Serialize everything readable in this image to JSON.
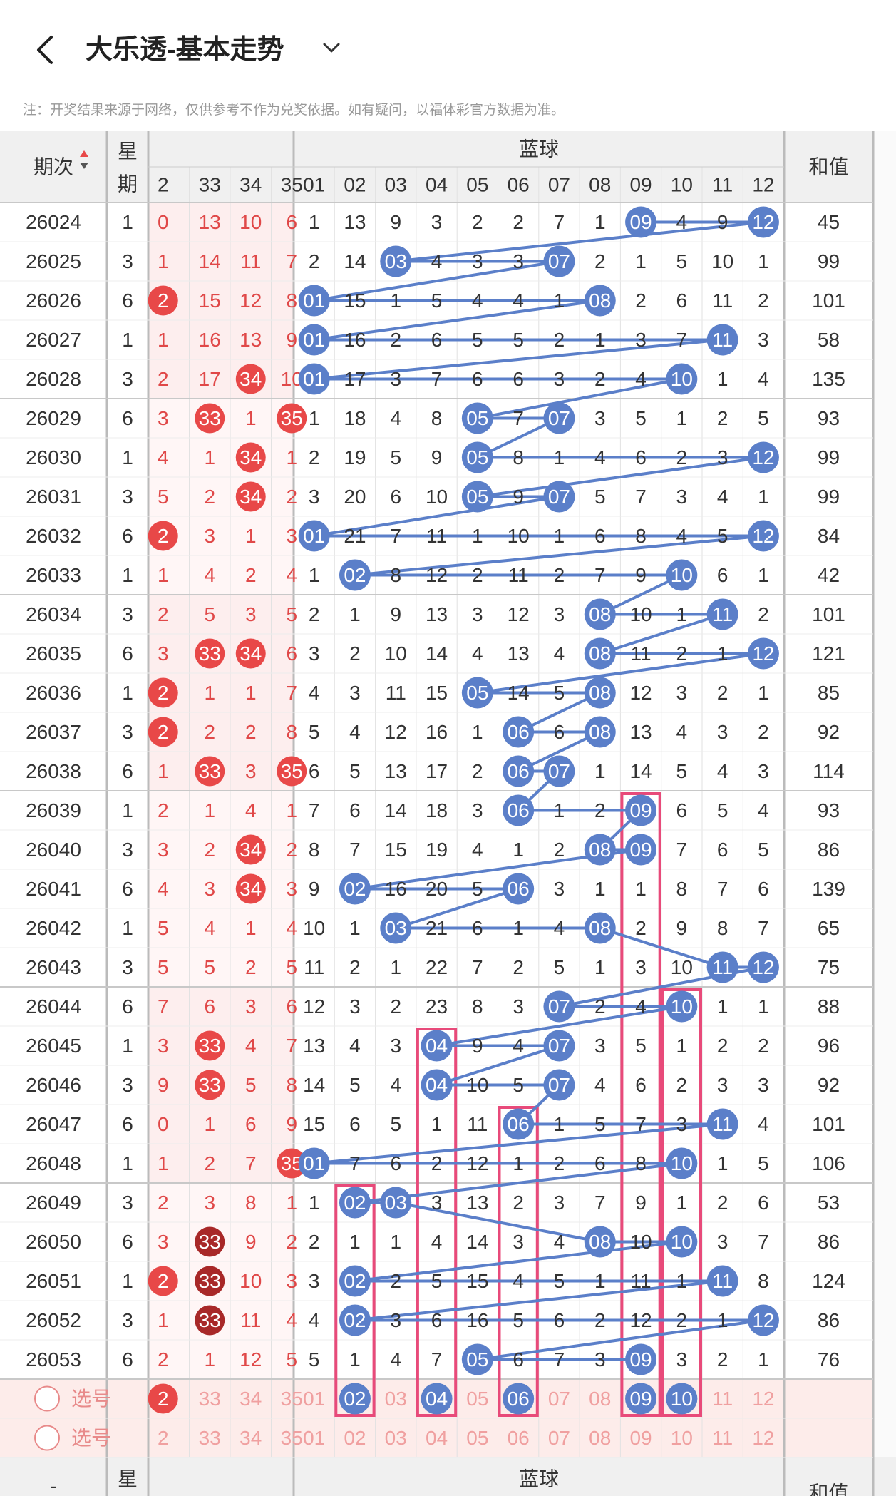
{
  "header": {
    "title": "大乐透-基本走势",
    "back_icon": "chevron-left-icon",
    "dropdown_icon": "chevron-down-icon"
  },
  "note": "注：开奖结果来源于网络，仅供参考不作为兑奖依据。如有疑问，以福体彩官方数据为准。",
  "table": {
    "issue_label": "期次",
    "week_label_1": "星",
    "week_label_2": "期",
    "blue_label": "蓝球",
    "sum_label": "和值",
    "front_cols": [
      "2",
      "33",
      "34",
      "35"
    ],
    "blue_cols": [
      "01",
      "02",
      "03",
      "04",
      "05",
      "06",
      "07",
      "08",
      "09",
      "10",
      "11",
      "12"
    ],
    "rows": [
      {
        "issue": "26024",
        "week": "1",
        "front": [
          "0",
          "13",
          "10",
          "6"
        ],
        "front_hit": [
          0,
          0,
          0,
          0
        ],
        "blue": [
          "1",
          "13",
          "9",
          "3",
          "2",
          "2",
          "7",
          "1",
          "09",
          "4",
          "9",
          "12"
        ],
        "blue_hit": [
          9,
          12
        ],
        "sum": "45"
      },
      {
        "issue": "26025",
        "week": "3",
        "front": [
          "1",
          "14",
          "11",
          "7"
        ],
        "front_hit": [
          0,
          0,
          0,
          0
        ],
        "blue": [
          "2",
          "14",
          "03",
          "4",
          "3",
          "3",
          "07",
          "2",
          "1",
          "5",
          "10",
          "1"
        ],
        "blue_hit": [
          3,
          7
        ],
        "sum": "99"
      },
      {
        "issue": "26026",
        "week": "6",
        "front": [
          "2",
          "15",
          "12",
          "8"
        ],
        "front_hit": [
          1,
          0,
          0,
          0
        ],
        "blue": [
          "01",
          "15",
          "1",
          "5",
          "4",
          "4",
          "1",
          "08",
          "2",
          "6",
          "11",
          "2"
        ],
        "blue_hit": [
          1,
          8
        ],
        "sum": "101"
      },
      {
        "issue": "26027",
        "week": "1",
        "front": [
          "1",
          "16",
          "13",
          "9"
        ],
        "front_hit": [
          0,
          0,
          0,
          0
        ],
        "blue": [
          "01",
          "16",
          "2",
          "6",
          "5",
          "5",
          "2",
          "1",
          "3",
          "7",
          "11",
          "3"
        ],
        "blue_hit": [
          1,
          11
        ],
        "sum": "58"
      },
      {
        "issue": "26028",
        "week": "3",
        "front": [
          "2",
          "17",
          "34",
          "10"
        ],
        "front_hit": [
          0,
          0,
          1,
          0
        ],
        "blue": [
          "01",
          "17",
          "3",
          "7",
          "6",
          "6",
          "3",
          "2",
          "4",
          "10",
          "1",
          "4"
        ],
        "blue_hit": [
          1,
          10
        ],
        "sum": "135"
      },
      {
        "issue": "26029",
        "week": "6",
        "front": [
          "3",
          "33",
          "1",
          "35"
        ],
        "front_hit": [
          0,
          1,
          0,
          1
        ],
        "blue": [
          "1",
          "18",
          "4",
          "8",
          "05",
          "7",
          "07",
          "3",
          "5",
          "1",
          "2",
          "5"
        ],
        "blue_hit": [
          5,
          7
        ],
        "sum": "93"
      },
      {
        "issue": "26030",
        "week": "1",
        "front": [
          "4",
          "1",
          "34",
          "1"
        ],
        "front_hit": [
          0,
          0,
          1,
          0
        ],
        "blue": [
          "2",
          "19",
          "5",
          "9",
          "05",
          "8",
          "1",
          "4",
          "6",
          "2",
          "3",
          "12"
        ],
        "blue_hit": [
          5,
          12
        ],
        "sum": "99"
      },
      {
        "issue": "26031",
        "week": "3",
        "front": [
          "5",
          "2",
          "34",
          "2"
        ],
        "front_hit": [
          0,
          0,
          1,
          0
        ],
        "blue": [
          "3",
          "20",
          "6",
          "10",
          "05",
          "9",
          "07",
          "5",
          "7",
          "3",
          "4",
          "1"
        ],
        "blue_hit": [
          5,
          7
        ],
        "sum": "99"
      },
      {
        "issue": "26032",
        "week": "6",
        "front": [
          "2",
          "3",
          "1",
          "3"
        ],
        "front_hit": [
          1,
          0,
          0,
          0
        ],
        "blue": [
          "01",
          "21",
          "7",
          "11",
          "1",
          "10",
          "1",
          "6",
          "8",
          "4",
          "5",
          "12"
        ],
        "blue_hit": [
          1,
          12
        ],
        "sum": "84"
      },
      {
        "issue": "26033",
        "week": "1",
        "front": [
          "1",
          "4",
          "2",
          "4"
        ],
        "front_hit": [
          0,
          0,
          0,
          0
        ],
        "blue": [
          "1",
          "02",
          "8",
          "12",
          "2",
          "11",
          "2",
          "7",
          "9",
          "10",
          "6",
          "1"
        ],
        "blue_hit": [
          2,
          10
        ],
        "sum": "42"
      },
      {
        "issue": "26034",
        "week": "3",
        "front": [
          "2",
          "5",
          "3",
          "5"
        ],
        "front_hit": [
          0,
          0,
          0,
          0
        ],
        "blue": [
          "2",
          "1",
          "9",
          "13",
          "3",
          "12",
          "3",
          "08",
          "10",
          "1",
          "11",
          "2"
        ],
        "blue_hit": [
          8,
          11
        ],
        "sum": "101"
      },
      {
        "issue": "26035",
        "week": "6",
        "front": [
          "3",
          "33",
          "34",
          "6"
        ],
        "front_hit": [
          0,
          1,
          1,
          0
        ],
        "blue": [
          "3",
          "2",
          "10",
          "14",
          "4",
          "13",
          "4",
          "08",
          "11",
          "2",
          "1",
          "12"
        ],
        "blue_hit": [
          8,
          12
        ],
        "sum": "121"
      },
      {
        "issue": "26036",
        "week": "1",
        "front": [
          "2",
          "1",
          "1",
          "7"
        ],
        "front_hit": [
          1,
          0,
          0,
          0
        ],
        "blue": [
          "4",
          "3",
          "11",
          "15",
          "05",
          "14",
          "5",
          "08",
          "12",
          "3",
          "2",
          "1"
        ],
        "blue_hit": [
          5,
          8
        ],
        "sum": "85"
      },
      {
        "issue": "26037",
        "week": "3",
        "front": [
          "2",
          "2",
          "2",
          "8"
        ],
        "front_hit": [
          1,
          0,
          0,
          0
        ],
        "blue": [
          "5",
          "4",
          "12",
          "16",
          "1",
          "06",
          "6",
          "08",
          "13",
          "4",
          "3",
          "2"
        ],
        "blue_hit": [
          6,
          8
        ],
        "sum": "92"
      },
      {
        "issue": "26038",
        "week": "6",
        "front": [
          "1",
          "33",
          "3",
          "35"
        ],
        "front_hit": [
          0,
          1,
          0,
          1
        ],
        "blue": [
          "6",
          "5",
          "13",
          "17",
          "2",
          "06",
          "07",
          "1",
          "14",
          "5",
          "4",
          "3"
        ],
        "blue_hit": [
          6,
          7
        ],
        "sum": "114"
      },
      {
        "issue": "26039",
        "week": "1",
        "front": [
          "2",
          "1",
          "4",
          "1"
        ],
        "front_hit": [
          0,
          0,
          0,
          0
        ],
        "blue": [
          "7",
          "6",
          "14",
          "18",
          "3",
          "06",
          "1",
          "2",
          "09",
          "6",
          "5",
          "4"
        ],
        "blue_hit": [
          6,
          9
        ],
        "sum": "93"
      },
      {
        "issue": "26040",
        "week": "3",
        "front": [
          "3",
          "2",
          "34",
          "2"
        ],
        "front_hit": [
          0,
          0,
          1,
          0
        ],
        "blue": [
          "8",
          "7",
          "15",
          "19",
          "4",
          "1",
          "2",
          "08",
          "09",
          "7",
          "6",
          "5"
        ],
        "blue_hit": [
          8,
          9
        ],
        "sum": "86"
      },
      {
        "issue": "26041",
        "week": "6",
        "front": [
          "4",
          "3",
          "34",
          "3"
        ],
        "front_hit": [
          0,
          0,
          1,
          0
        ],
        "blue": [
          "9",
          "02",
          "16",
          "20",
          "5",
          "06",
          "3",
          "1",
          "1",
          "8",
          "7",
          "6"
        ],
        "blue_hit": [
          2,
          6
        ],
        "sum": "139"
      },
      {
        "issue": "26042",
        "week": "1",
        "front": [
          "5",
          "4",
          "1",
          "4"
        ],
        "front_hit": [
          0,
          0,
          0,
          0
        ],
        "blue": [
          "10",
          "1",
          "03",
          "21",
          "6",
          "1",
          "4",
          "08",
          "2",
          "9",
          "8",
          "7"
        ],
        "blue_hit": [
          3,
          8
        ],
        "sum": "65"
      },
      {
        "issue": "26043",
        "week": "3",
        "front": [
          "5",
          "5",
          "2",
          "5"
        ],
        "front_hit": [
          0,
          0,
          0,
          0
        ],
        "blue": [
          "11",
          "2",
          "1",
          "22",
          "7",
          "2",
          "5",
          "1",
          "3",
          "10",
          "11",
          "12"
        ],
        "blue_hit": [
          11,
          12
        ],
        "sum": "75"
      },
      {
        "issue": "26044",
        "week": "6",
        "front": [
          "7",
          "6",
          "3",
          "6"
        ],
        "front_hit": [
          0,
          0,
          0,
          0
        ],
        "blue": [
          "12",
          "3",
          "2",
          "23",
          "8",
          "3",
          "07",
          "2",
          "4",
          "10",
          "1",
          "1"
        ],
        "blue_hit": [
          7,
          10
        ],
        "sum": "88"
      },
      {
        "issue": "26045",
        "week": "1",
        "front": [
          "3",
          "33",
          "4",
          "7"
        ],
        "front_hit": [
          0,
          1,
          0,
          0
        ],
        "blue": [
          "13",
          "4",
          "3",
          "04",
          "9",
          "4",
          "07",
          "3",
          "5",
          "1",
          "2",
          "2"
        ],
        "blue_hit": [
          4,
          7
        ],
        "sum": "96"
      },
      {
        "issue": "26046",
        "week": "3",
        "front": [
          "9",
          "33",
          "5",
          "8"
        ],
        "front_hit": [
          0,
          1,
          0,
          0
        ],
        "blue": [
          "14",
          "5",
          "4",
          "04",
          "10",
          "5",
          "07",
          "4",
          "6",
          "2",
          "3",
          "3"
        ],
        "blue_hit": [
          4,
          7
        ],
        "sum": "92"
      },
      {
        "issue": "26047",
        "week": "6",
        "front": [
          "0",
          "1",
          "6",
          "9"
        ],
        "front_hit": [
          0,
          0,
          0,
          0
        ],
        "blue": [
          "15",
          "6",
          "5",
          "1",
          "11",
          "06",
          "1",
          "5",
          "7",
          "3",
          "11",
          "4"
        ],
        "blue_hit": [
          6,
          11
        ],
        "sum": "101"
      },
      {
        "issue": "26048",
        "week": "1",
        "front": [
          "1",
          "2",
          "7",
          "35"
        ],
        "front_hit": [
          0,
          0,
          0,
          1
        ],
        "blue": [
          "01",
          "7",
          "6",
          "2",
          "12",
          "1",
          "2",
          "6",
          "8",
          "10",
          "1",
          "5"
        ],
        "blue_hit": [
          1,
          10
        ],
        "sum": "106"
      },
      {
        "issue": "26049",
        "week": "3",
        "front": [
          "2",
          "3",
          "8",
          "1"
        ],
        "front_hit": [
          0,
          0,
          0,
          0
        ],
        "blue": [
          "1",
          "02",
          "03",
          "3",
          "13",
          "2",
          "3",
          "7",
          "9",
          "1",
          "2",
          "6"
        ],
        "blue_hit": [
          2,
          3
        ],
        "sum": "53"
      },
      {
        "issue": "26050",
        "week": "6",
        "front": [
          "3",
          "33",
          "9",
          "2"
        ],
        "front_hit": [
          0,
          2,
          0,
          0
        ],
        "blue": [
          "2",
          "1",
          "1",
          "4",
          "14",
          "3",
          "4",
          "08",
          "10",
          "10",
          "3",
          "7"
        ],
        "blue_hit": [
          8,
          10
        ],
        "sum": "86"
      },
      {
        "issue": "26051",
        "week": "1",
        "front": [
          "2",
          "33",
          "10",
          "3"
        ],
        "front_hit": [
          1,
          2,
          0,
          0
        ],
        "blue": [
          "3",
          "02",
          "2",
          "5",
          "15",
          "4",
          "5",
          "1",
          "11",
          "1",
          "11",
          "8"
        ],
        "blue_hit": [
          2,
          11
        ],
        "sum": "124"
      },
      {
        "issue": "26052",
        "week": "3",
        "front": [
          "1",
          "33",
          "11",
          "4"
        ],
        "front_hit": [
          0,
          2,
          0,
          0
        ],
        "blue": [
          "4",
          "02",
          "3",
          "6",
          "16",
          "5",
          "6",
          "2",
          "12",
          "2",
          "1",
          "12"
        ],
        "blue_hit": [
          2,
          12
        ],
        "sum": "86"
      },
      {
        "issue": "26053",
        "week": "6",
        "front": [
          "2",
          "1",
          "12",
          "5"
        ],
        "front_hit": [
          0,
          0,
          0,
          0
        ],
        "blue": [
          "5",
          "1",
          "4",
          "7",
          "05",
          "6",
          "7",
          "3",
          "09",
          "3",
          "2",
          "1"
        ],
        "blue_hit": [
          5,
          9
        ],
        "sum": "76"
      }
    ],
    "select_label": "选号",
    "select_rows": [
      {
        "front": [
          "2",
          "33",
          "34",
          "35"
        ],
        "front_hit": [
          1,
          0,
          0,
          0
        ],
        "blue_hit": [
          2,
          4,
          6,
          9,
          10
        ]
      },
      {
        "front": [
          "2",
          "33",
          "34",
          "35"
        ],
        "front_hit": [
          0,
          0,
          0,
          0
        ],
        "blue_hit": []
      }
    ],
    "footer_week": "星",
    "footer_blue": "蓝球",
    "footer_sum": "和值",
    "footer_issue": "-"
  },
  "colors": {
    "blue_ball": "#5b7fc9",
    "red_ball": "#e84848",
    "dark_red_ball": "#a82828",
    "pink_box": "#e84a7a",
    "header_bg": "#f0f0f0",
    "red_text": "#e04848"
  }
}
